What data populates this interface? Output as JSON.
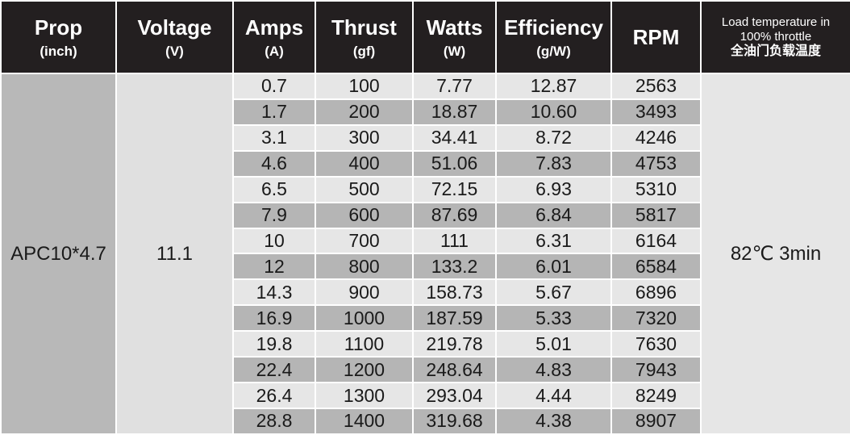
{
  "table": {
    "headers": [
      {
        "title": "Prop",
        "unit": "(inch)"
      },
      {
        "title": "Voltage",
        "unit": "(V)"
      },
      {
        "title": "Amps",
        "unit": "(A)"
      },
      {
        "title": "Thrust",
        "unit": "(gf)"
      },
      {
        "title": "Watts",
        "unit": "(W)"
      },
      {
        "title": "Efficiency",
        "unit": "(g/W)"
      },
      {
        "title": "RPM"
      },
      {
        "lines": [
          "Load temperature in",
          "100% throttle",
          "全油门负载温度"
        ]
      }
    ],
    "prop": "APC10*4.7",
    "voltage": "11.1",
    "temperature": "82℃ 3min",
    "rows": [
      [
        "0.7",
        "100",
        "7.77",
        "12.87",
        "2563"
      ],
      [
        "1.7",
        "200",
        "18.87",
        "10.60",
        "3493"
      ],
      [
        "3.1",
        "300",
        "34.41",
        "8.72",
        "4246"
      ],
      [
        "4.6",
        "400",
        "51.06",
        "7.83",
        "4753"
      ],
      [
        "6.5",
        "500",
        "72.15",
        "6.93",
        "5310"
      ],
      [
        "7.9",
        "600",
        "87.69",
        "6.84",
        "5817"
      ],
      [
        "10",
        "700",
        "111",
        "6.31",
        "6164"
      ],
      [
        "12",
        "800",
        "133.2",
        "6.01",
        "6584"
      ],
      [
        "14.3",
        "900",
        "158.73",
        "5.67",
        "6896"
      ],
      [
        "16.9",
        "1000",
        "187.59",
        "5.33",
        "7320"
      ],
      [
        "19.8",
        "1100",
        "219.78",
        "5.01",
        "7630"
      ],
      [
        "22.4",
        "1200",
        "248.64",
        "4.83",
        "7943"
      ],
      [
        "26.4",
        "1300",
        "293.04",
        "4.44",
        "8249"
      ],
      [
        "28.8",
        "1400",
        "319.68",
        "4.38",
        "8907"
      ]
    ]
  }
}
